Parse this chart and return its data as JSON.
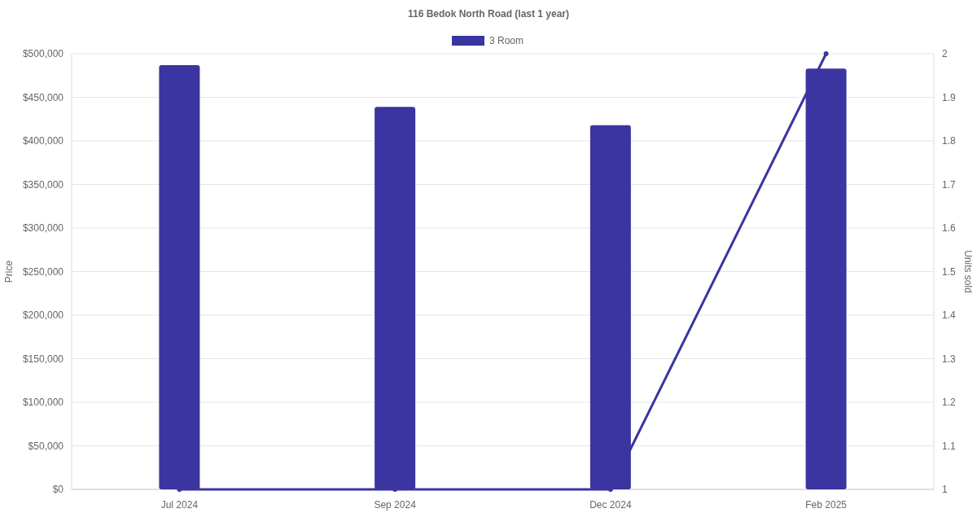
{
  "chart_data": {
    "type": "bar",
    "title": "116 Bedok North Road (last 1 year)",
    "ylabel": "Price",
    "y2label": "Units sold",
    "categories": [
      "Jul 2024",
      "Sep 2024",
      "Dec 2024",
      "Feb 2025"
    ],
    "series": [
      {
        "name": "3 Room",
        "color": "#3a35a0",
        "values": [
          487000,
          439000,
          418000,
          483000
        ]
      },
      {
        "type": "line",
        "axis": "y2",
        "color": "#3a35a0",
        "values": [
          1,
          1,
          1,
          2
        ]
      }
    ],
    "ylim": [
      0,
      500000
    ],
    "yticks": [
      {
        "value": 0,
        "label": "$0"
      },
      {
        "value": 50000,
        "label": "$50,000"
      },
      {
        "value": 100000,
        "label": "$100,000"
      },
      {
        "value": 150000,
        "label": "$150,000"
      },
      {
        "value": 200000,
        "label": "$200,000"
      },
      {
        "value": 250000,
        "label": "$250,000"
      },
      {
        "value": 300000,
        "label": "$300,000"
      },
      {
        "value": 350000,
        "label": "$350,000"
      },
      {
        "value": 400000,
        "label": "$400,000"
      },
      {
        "value": 450000,
        "label": "$450,000"
      },
      {
        "value": 500000,
        "label": "$500,000"
      }
    ],
    "y2lim": [
      1,
      2
    ],
    "y2ticks": [
      1,
      1.1,
      1.2,
      1.3,
      1.4,
      1.5,
      1.6,
      1.7,
      1.8,
      1.9,
      2
    ],
    "grid": "y",
    "legend": "top",
    "marker": "circle",
    "line_style": "solid"
  }
}
